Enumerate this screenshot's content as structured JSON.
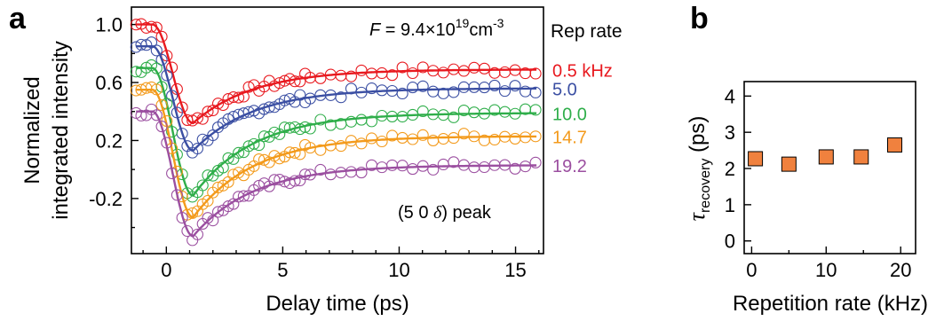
{
  "chart_data": [
    {
      "panel_label": "a",
      "type": "scatter",
      "xlabel": "Delay time (ps)",
      "ylabel_line1": "Normalized",
      "ylabel_line2": "integrated intensity",
      "xlim": [
        -1.5,
        16.2
      ],
      "ylim": [
        -0.58,
        1.12
      ],
      "xticks": [
        "0",
        "5",
        "10",
        "15"
      ],
      "xtick_values": [
        0,
        5,
        10,
        15
      ],
      "yticks": [
        "1.0",
        "0.6",
        "0.2",
        "-0.2"
      ],
      "ytick_values": [
        1.0,
        0.6,
        0.2,
        -0.2
      ],
      "fluence_label": "F",
      "fluence_value": " = 9.4×10",
      "fluence_exp": "19",
      "fluence_unit": "cm",
      "fluence_unit_exp": "-3",
      "peak_prefix": "(5 0 ",
      "peak_delta": "δ",
      "peak_suffix": ") peak",
      "legend_title": "Rep rate",
      "series": [
        {
          "name": "0.5 kHz",
          "color": "#e8191f",
          "offset": 0.0,
          "start": 1.0,
          "min": 0.32,
          "end": 0.69
        },
        {
          "name": "5.0",
          "color": "#3b4fa3",
          "offset": -0.15,
          "start": 0.85,
          "min": 0.13,
          "end": 0.56
        },
        {
          "name": "10.0",
          "color": "#2fae4a",
          "offset": -0.3,
          "start": 0.7,
          "min": -0.18,
          "end": 0.39
        },
        {
          "name": "14.7",
          "color": "#f39a1b",
          "offset": -0.45,
          "start": 0.55,
          "min": -0.33,
          "end": 0.23
        },
        {
          "name": "19.2",
          "color": "#9b4fa0",
          "offset": -0.6,
          "start": 0.4,
          "min": -0.46,
          "end": 0.03
        }
      ]
    },
    {
      "panel_label": "b",
      "type": "scatter",
      "xlabel": "Repetition rate (kHz)",
      "ylabel_main": "τ",
      "ylabel_sub": "recovery",
      "ylabel_unit": " (ps)",
      "xlim": [
        -1,
        22
      ],
      "ylim": [
        -0.35,
        4.4
      ],
      "xticks": [
        "0",
        "10",
        "20"
      ],
      "xtick_values": [
        0,
        10,
        20
      ],
      "yticks": [
        "0",
        "1",
        "2",
        "3",
        "4"
      ],
      "ytick_values": [
        0,
        1,
        2,
        3,
        4
      ],
      "marker_color": "#f0813e",
      "x": [
        0.5,
        5.0,
        10.0,
        14.7,
        19.2
      ],
      "y": [
        2.27,
        2.12,
        2.32,
        2.32,
        2.65
      ]
    }
  ]
}
